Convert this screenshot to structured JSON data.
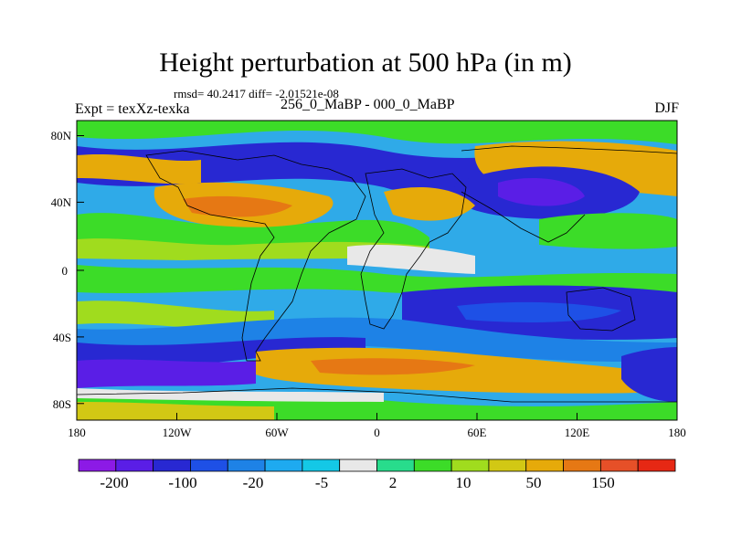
{
  "header": {
    "title": "Height perturbation at 500 hPa (in m)",
    "stats": "rmsd= 40.2417 diff= -2.01521e-08",
    "experiment": "Expt = texXz-texka",
    "subtitle": "256_0_MaBP - 000_0_MaBP",
    "season": "DJF"
  },
  "map": {
    "projection": "cylindrical equidistant",
    "lon_range": [
      -180,
      180
    ],
    "lat_range": [
      -90,
      90
    ],
    "x_ticks": [
      "180",
      "120W",
      "60W",
      "0",
      "60E",
      "120E",
      "180"
    ],
    "y_ticks": [
      "80N",
      "40N",
      "0",
      "40S",
      "80S"
    ],
    "coastlines": "paleogeography (256 Ma)"
  },
  "colorbar": {
    "labels": [
      "-200",
      "-100",
      "-20",
      "-5",
      "2",
      "10",
      "50",
      "150"
    ],
    "colors": [
      "#8c1ae6",
      "#5a1ee6",
      "#2828d2",
      "#1e50e6",
      "#1e82e6",
      "#1eaaf0",
      "#14c8e6",
      "#e8e8e8",
      "#28dc8c",
      "#3cdc28",
      "#a0dc1e",
      "#d2c814",
      "#e6aa0a",
      "#e67814",
      "#e65028",
      "#e62814"
    ]
  }
}
